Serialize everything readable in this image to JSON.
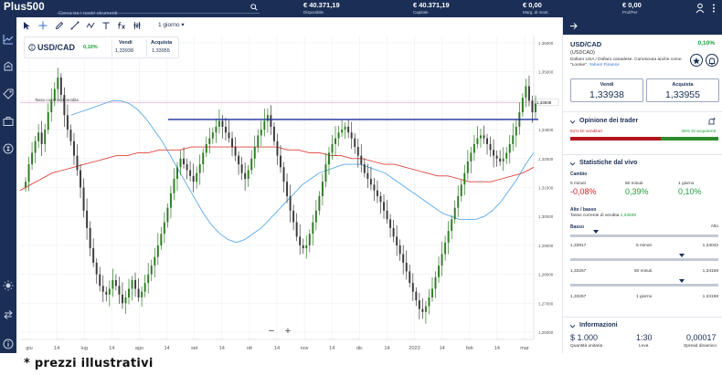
{
  "app": {
    "logo": "Plus500"
  },
  "search": {
    "placeholder": "Cerca tra i nostri strumenti"
  },
  "topbar": {
    "stats": [
      {
        "value": "€ 40.371,19",
        "label": "Disponibile"
      },
      {
        "value": "€ 40.371,19",
        "label": "Capitale"
      },
      {
        "value": "€ 0,00",
        "label": "Marg. di mant."
      },
      {
        "value": "€ 0,00",
        "label": "Prof/Per"
      }
    ]
  },
  "toolbar": {
    "period": "1 giorno"
  },
  "instrument": {
    "name": "USD/CAD",
    "change": "0,10%",
    "sell_label": "Vendi",
    "sell_value": "1,33938",
    "buy_label": "Acquista",
    "buy_value": "1,33955"
  },
  "chart_data": {
    "type": "candlestick",
    "pair": "USD/CAD",
    "x_tick_labels": [
      "giu",
      "14",
      "lug",
      "14",
      "ago",
      "14",
      "set",
      "14",
      "ott",
      "14",
      "nov",
      "14",
      "dic",
      "14",
      "2023",
      "14",
      "feb",
      "14",
      "mar"
    ],
    "y_tick_labels": [
      "1,36000",
      "1,35000",
      "1,34000",
      "1,33000",
      "1,32000",
      "1,31000",
      "1,30000",
      "1,29000",
      "1,28000",
      "1,27000",
      "1,26000"
    ],
    "ylim": [
      1.2575,
      1.3625
    ],
    "price_label": "1,33938",
    "annotation": "Tasso corrente di vendita",
    "horizontal_line": 1.3335,
    "closes": [
      1.312,
      1.318,
      1.322,
      1.326,
      1.329,
      1.325,
      1.33,
      1.336,
      1.34,
      1.344,
      1.348,
      1.342,
      1.335,
      1.33,
      1.326,
      1.321,
      1.316,
      1.31,
      1.302,
      1.296,
      1.289,
      1.284,
      1.28,
      1.276,
      1.274,
      1.273,
      1.275,
      1.278,
      1.276,
      1.273,
      1.27,
      1.272,
      1.275,
      1.278,
      1.275,
      1.272,
      1.274,
      1.277,
      1.28,
      1.283,
      1.286,
      1.29,
      1.294,
      1.298,
      1.303,
      1.308,
      1.313,
      1.317,
      1.32,
      1.318,
      1.316,
      1.314,
      1.312,
      1.315,
      1.318,
      1.322,
      1.325,
      1.327,
      1.329,
      1.331,
      1.333,
      1.331,
      1.329,
      1.327,
      1.324,
      1.321,
      1.318,
      1.315,
      1.313,
      1.316,
      1.32,
      1.324,
      1.328,
      1.33,
      1.333,
      1.335,
      1.331,
      1.326,
      1.321,
      1.317,
      1.312,
      1.307,
      1.302,
      1.298,
      1.293,
      1.29,
      1.289,
      1.29,
      1.294,
      1.298,
      1.302,
      1.307,
      1.312,
      1.318,
      1.322,
      1.325,
      1.327,
      1.329,
      1.33,
      1.331,
      1.329,
      1.327,
      1.324,
      1.321,
      1.318,
      1.315,
      1.313,
      1.311,
      1.309,
      1.307,
      1.305,
      1.302,
      1.299,
      1.296,
      1.293,
      1.29,
      1.287,
      1.284,
      1.281,
      1.277,
      1.274,
      1.271,
      1.268,
      1.267,
      1.269,
      1.272,
      1.275,
      1.279,
      1.283,
      1.287,
      1.291,
      1.295,
      1.299,
      1.303,
      1.307,
      1.311,
      1.315,
      1.319,
      1.322,
      1.325,
      1.327,
      1.328,
      1.327,
      1.325,
      1.323,
      1.321,
      1.32,
      1.319,
      1.32,
      1.322,
      1.325,
      1.328,
      1.331,
      1.336,
      1.341,
      1.345,
      1.34,
      1.336,
      1.339
    ],
    "ma_blue": [
      1.335,
      1.336,
      1.337,
      1.338,
      1.339,
      1.34,
      1.34,
      1.339,
      1.337,
      1.334,
      1.33,
      1.326,
      1.321,
      1.316,
      1.311,
      1.306,
      1.301,
      1.297,
      1.294,
      1.292,
      1.291,
      1.292,
      1.294,
      1.296,
      1.299,
      1.302,
      1.305,
      1.308,
      1.311,
      1.313,
      1.315,
      1.316,
      1.317,
      1.318,
      1.318,
      1.318,
      1.317,
      1.316,
      1.315,
      1.313,
      1.311,
      1.309,
      1.307,
      1.305,
      1.303,
      1.301,
      1.3,
      1.299,
      1.299,
      1.299,
      1.3,
      1.302,
      1.305,
      1.309,
      1.313,
      1.318,
      1.322
    ],
    "ma_red": [
      1.309,
      1.311,
      1.313,
      1.315,
      1.316,
      1.317,
      1.318,
      1.319,
      1.32,
      1.321,
      1.321,
      1.322,
      1.322,
      1.323,
      1.323,
      1.323,
      1.324,
      1.324,
      1.324,
      1.324,
      1.324,
      1.324,
      1.324,
      1.324,
      1.324,
      1.323,
      1.323,
      1.322,
      1.322,
      1.321,
      1.321,
      1.32,
      1.32,
      1.319,
      1.318,
      1.318,
      1.317,
      1.316,
      1.315,
      1.314,
      1.314,
      1.313,
      1.312,
      1.312,
      1.312,
      1.313,
      1.314,
      1.315,
      1.317
    ],
    "colors": {
      "up": "#2f7a24",
      "down": "#3a3a3a",
      "ma_blue": "#5aa9e6",
      "ma_red": "#e0403a",
      "hline": "#1b2f9a",
      "price_line": "#e7b8d9"
    }
  },
  "panel": {
    "name": "USD/CAD",
    "change": "0,10%",
    "code": "(USDCAD)",
    "description": "Dollaro USA / Dollaro canadese. Conosciuta anche come \"Loonie\".",
    "yahoo_link": "Yahoo! Finance",
    "sell_label": "Vendi",
    "sell_value": "1,33938",
    "buy_label": "Acquista",
    "buy_value": "1,33955",
    "sentiment": {
      "title": "Opinione dei trader",
      "sellers": "61% Di venditori",
      "buyers": "39% Di acquirenti",
      "sellers_fraction": 0.61
    },
    "stats": {
      "title": "Statistiche dal vivo",
      "change_label": "Cambio",
      "changes": [
        {
          "label": "5 minuti",
          "value": "-0,08%",
          "color": "#d0202a"
        },
        {
          "label": "60 minuti",
          "value": "0,39%",
          "color": "#1a9e3a"
        },
        {
          "label": "1 giorno",
          "value": "0,10%",
          "color": "#1a9e3a"
        }
      ],
      "highlow_label": "Alto / basso",
      "current_rate_label": "Tasso corrente di vendita",
      "current_rate_value": "1,33938",
      "low_label": "Basso",
      "high_label": "Alto",
      "ranges": [
        {
          "label": "5 minuti",
          "low": "1,33917",
          "high": "1,34042",
          "marker": 0.17
        },
        {
          "label": "60 minuti",
          "low": "1,33267",
          "high": "1,34159",
          "marker": 0.75
        },
        {
          "label": "1 giorno",
          "low": "1,33267",
          "high": "1,34159",
          "marker": 0.75
        }
      ]
    },
    "info": {
      "title": "Informazioni",
      "items": [
        {
          "value": "$ 1.000",
          "label": "Quantità unitaria"
        },
        {
          "value": "1:30",
          "label": "Leva"
        },
        {
          "value": "0,00017",
          "label": "Spread dinamico"
        }
      ]
    }
  },
  "footer": {
    "note": "* prezzi illustrativi"
  }
}
